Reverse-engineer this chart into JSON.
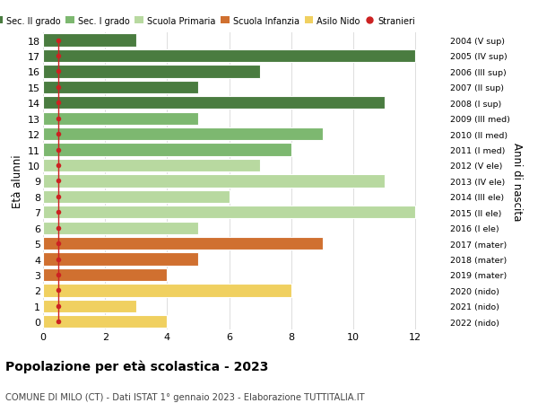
{
  "ages": [
    18,
    17,
    16,
    15,
    14,
    13,
    12,
    11,
    10,
    9,
    8,
    7,
    6,
    5,
    4,
    3,
    2,
    1,
    0
  ],
  "years": [
    "2004 (V sup)",
    "2005 (IV sup)",
    "2006 (III sup)",
    "2007 (II sup)",
    "2008 (I sup)",
    "2009 (III med)",
    "2010 (II med)",
    "2011 (I med)",
    "2012 (V ele)",
    "2013 (IV ele)",
    "2014 (III ele)",
    "2015 (II ele)",
    "2016 (I ele)",
    "2017 (mater)",
    "2018 (mater)",
    "2019 (mater)",
    "2020 (nido)",
    "2021 (nido)",
    "2022 (nido)"
  ],
  "bar_values": [
    3,
    12,
    7,
    5,
    11,
    5,
    9,
    8,
    7,
    11,
    6,
    12,
    5,
    9,
    5,
    4,
    8,
    3,
    4
  ],
  "bar_colors": [
    "#4a7c40",
    "#4a7c40",
    "#4a7c40",
    "#4a7c40",
    "#4a7c40",
    "#7db870",
    "#7db870",
    "#7db870",
    "#b8d9a0",
    "#b8d9a0",
    "#b8d9a0",
    "#b8d9a0",
    "#b8d9a0",
    "#d07030",
    "#d07030",
    "#d07030",
    "#f0d060",
    "#f0d060",
    "#f0d060"
  ],
  "stranieri_x": 0.5,
  "stranieri_color": "#cc2222",
  "legend_labels": [
    "Sec. II grado",
    "Sec. I grado",
    "Scuola Primaria",
    "Scuola Infanzia",
    "Asilo Nido",
    "Stranieri"
  ],
  "legend_colors": [
    "#4a7c40",
    "#7db870",
    "#b8d9a0",
    "#d07030",
    "#f0d060",
    "#cc2222"
  ],
  "ylabel_left": "Età alunni",
  "ylabel_right": "Anni di nascita",
  "title": "Popolazione per età scolastica - 2023",
  "subtitle": "COMUNE DI MILO (CT) - Dati ISTAT 1° gennaio 2023 - Elaborazione TUTTITALIA.IT",
  "xlim": [
    0,
    13
  ],
  "ylim": [
    -0.5,
    18.5
  ],
  "bg_color": "#ffffff",
  "grid_color": "#dddddd",
  "bar_height": 0.82
}
